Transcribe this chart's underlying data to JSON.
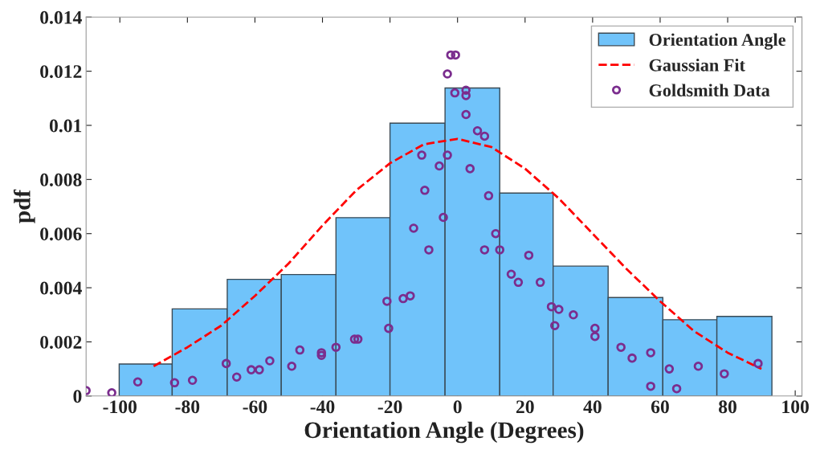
{
  "chart_data": {
    "type": "histogram",
    "xlabel": "Orientation Angle (Degrees)",
    "ylabel": "pdf",
    "xlim": [
      -110,
      102
    ],
    "ylim": [
      0,
      0.014
    ],
    "xticks": [
      -100,
      -80,
      -60,
      -40,
      -20,
      0,
      20,
      40,
      60,
      80,
      100
    ],
    "yticks": [
      0,
      0.002,
      0.004,
      0.006,
      0.008,
      0.01,
      0.012,
      0.014
    ],
    "grid": false,
    "legend": "top right",
    "series": [
      {
        "name": "Orientation Angle",
        "color": "#70c3fa",
        "bins": [
          -100.2,
          -84.5,
          -68.2,
          -52.2,
          -36.0,
          -20.0,
          -3.7,
          12.5,
          28.3,
          44.6,
          60.8,
          76.8,
          93.1
        ],
        "values": [
          0.00118,
          0.00322,
          0.00431,
          0.00449,
          0.00659,
          0.01008,
          0.01138,
          0.0075,
          0.0048,
          0.00364,
          0.00282,
          0.00294
        ]
      },
      {
        "name": "Gaussian Fit",
        "type": "line",
        "color": "#ff0000",
        "line_style": "dashed",
        "marker": "none",
        "x": [
          -90,
          -80,
          -70,
          -60,
          -50,
          -40,
          -30,
          -20,
          -10,
          0,
          10,
          20,
          30,
          40,
          50,
          60,
          70,
          80,
          90
        ],
        "values": [
          0.0011,
          0.0018,
          0.0026,
          0.0037,
          0.0049,
          0.0063,
          0.0076,
          0.0086,
          0.0093,
          0.0095,
          0.0092,
          0.0084,
          0.0073,
          0.006,
          0.0047,
          0.0035,
          0.0024,
          0.0016,
          0.001
        ]
      },
      {
        "name": "Goldsmith Data",
        "type": "scatter",
        "color": "#7b2d8e",
        "marker": "circle",
        "x": [
          -110,
          -102.4,
          -94.7,
          -83.8,
          -78.5,
          -68.5,
          -65.4,
          -61.1,
          -58.7,
          -55.6,
          -49.1,
          -46.7,
          -40.3,
          -40.3,
          -36.0,
          -30.5,
          -29.5,
          -20.9,
          -20.4,
          -16.1,
          -14.0,
          -13.0,
          -10.6,
          -9.7,
          -8.5,
          -5.4,
          -4.2,
          -3.0,
          -3.0,
          -2.0,
          -0.6,
          -0.8,
          2.5,
          2.5,
          2.5,
          3.7,
          5.9,
          8.0,
          9.2,
          8.0,
          11.3,
          12.5,
          21.1,
          15.9,
          18.0,
          24.5,
          27.8,
          30.0,
          28.8,
          34.3,
          40.7,
          40.7,
          48.4,
          51.7,
          57.2,
          57.2,
          62.7,
          64.9,
          71.3,
          79.0,
          89.0
        ],
        "values": [
          0.0002,
          0.00012,
          0.00052,
          0.00049,
          0.00058,
          0.0012,
          0.0007,
          0.00097,
          0.00097,
          0.0013,
          0.0011,
          0.0017,
          0.0016,
          0.0015,
          0.0018,
          0.0021,
          0.0021,
          0.0035,
          0.0025,
          0.0036,
          0.0037,
          0.0062,
          0.0089,
          0.0076,
          0.0054,
          0.0085,
          0.0066,
          0.0089,
          0.0119,
          0.0126,
          0.0126,
          0.0112,
          0.0113,
          0.0111,
          0.0104,
          0.0084,
          0.0098,
          0.0096,
          0.0074,
          0.0054,
          0.006,
          0.0054,
          0.0052,
          0.0045,
          0.0042,
          0.0042,
          0.0033,
          0.0032,
          0.0026,
          0.003,
          0.0025,
          0.0022,
          0.0018,
          0.0014,
          0.0016,
          0.00036,
          0.001,
          0.00027,
          0.0011,
          0.00082,
          0.0012
        ]
      }
    ]
  }
}
